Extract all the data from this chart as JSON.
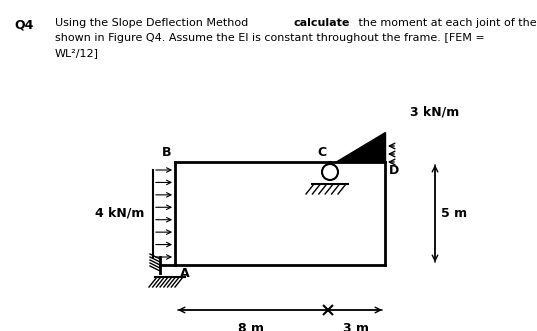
{
  "bg_color": "#ffffff",
  "load_horiz_label": "3 kN/m",
  "load_vert_label": "4 kN/m",
  "dim_bottom": "8 m",
  "dim_right": "3 m",
  "dim_vert": "5 m",
  "label_A": "A",
  "label_B": "B",
  "label_C": "C",
  "label_D": "D",
  "title_q": "Q4",
  "fs_text": 8.0
}
